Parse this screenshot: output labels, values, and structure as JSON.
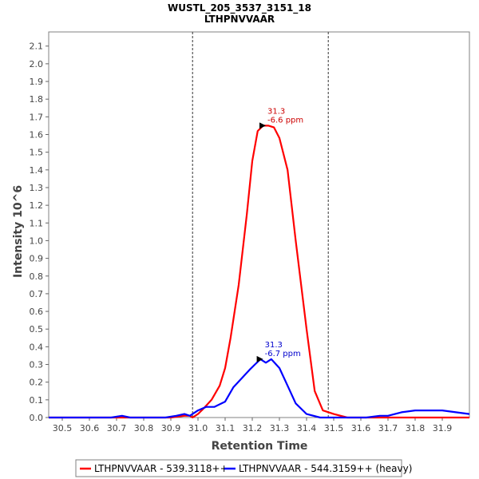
{
  "chart_data": {
    "type": "line",
    "title": "WUSTL_205_3537_3151_18",
    "subtitle": "LTHPNVVAAR",
    "xlabel": "Retention Time",
    "ylabel": "Intensity 10^6",
    "xlim": [
      30.45,
      32.0
    ],
    "ylim": [
      0,
      2.18
    ],
    "x_ticks": [
      "30.5",
      "30.6",
      "30.7",
      "30.8",
      "30.9",
      "31.0",
      "31.1",
      "31.2",
      "31.3",
      "31.4",
      "31.5",
      "31.6",
      "31.7",
      "31.8",
      "31.9"
    ],
    "y_ticks": [
      "0.0",
      "0.1",
      "0.2",
      "0.3",
      "0.4",
      "0.5",
      "0.6",
      "0.7",
      "0.8",
      "0.9",
      "1.0",
      "1.1",
      "1.2",
      "1.3",
      "1.4",
      "1.5",
      "1.6",
      "1.7",
      "1.8",
      "1.9",
      "2.0",
      "2.1"
    ],
    "integration_bounds": [
      30.98,
      31.48
    ],
    "legend_position": "bottom",
    "series": [
      {
        "name": "LTHPNVVAAR - 539.3118++",
        "color": "#ff0000",
        "x": [
          30.45,
          30.7,
          30.75,
          30.9,
          30.95,
          30.97,
          30.98,
          31.0,
          31.02,
          31.05,
          31.08,
          31.1,
          31.12,
          31.15,
          31.18,
          31.2,
          31.22,
          31.24,
          31.26,
          31.28,
          31.3,
          31.33,
          31.36,
          31.4,
          31.43,
          31.46,
          31.5,
          31.55,
          32.0
        ],
        "y": [
          0.0,
          0.0,
          0.0,
          0.0,
          0.01,
          0.01,
          0.0,
          0.02,
          0.05,
          0.1,
          0.18,
          0.28,
          0.45,
          0.75,
          1.15,
          1.45,
          1.62,
          1.65,
          1.65,
          1.64,
          1.58,
          1.4,
          1.0,
          0.5,
          0.15,
          0.04,
          0.02,
          0.0,
          0.0
        ]
      },
      {
        "name": "LTHPNVVAAR - 544.3159++ (heavy)",
        "color": "#0000ff",
        "x": [
          30.45,
          30.68,
          30.72,
          30.75,
          30.88,
          30.92,
          30.95,
          30.97,
          31.0,
          31.03,
          31.06,
          31.1,
          31.13,
          31.16,
          31.19,
          31.21,
          31.23,
          31.25,
          31.27,
          31.3,
          31.33,
          31.36,
          31.4,
          31.45,
          31.5,
          31.62,
          31.67,
          31.7,
          31.75,
          31.8,
          31.85,
          31.9,
          31.95,
          32.0
        ],
        "y": [
          0.0,
          0.0,
          0.01,
          0.0,
          0.0,
          0.01,
          0.02,
          0.01,
          0.04,
          0.06,
          0.06,
          0.09,
          0.17,
          0.22,
          0.27,
          0.3,
          0.33,
          0.31,
          0.33,
          0.28,
          0.18,
          0.08,
          0.02,
          0.0,
          0.0,
          0.0,
          0.01,
          0.01,
          0.03,
          0.04,
          0.04,
          0.04,
          0.03,
          0.02
        ]
      }
    ],
    "annotations": [
      {
        "x": 31.25,
        "y": 1.65,
        "text_rt": "31.3",
        "text_ppm": "-6.6 ppm",
        "color": "#cc0000"
      },
      {
        "x": 31.24,
        "y": 0.33,
        "text_rt": "31.3",
        "text_ppm": "-6.7 ppm",
        "color": "#0000cc"
      }
    ]
  }
}
